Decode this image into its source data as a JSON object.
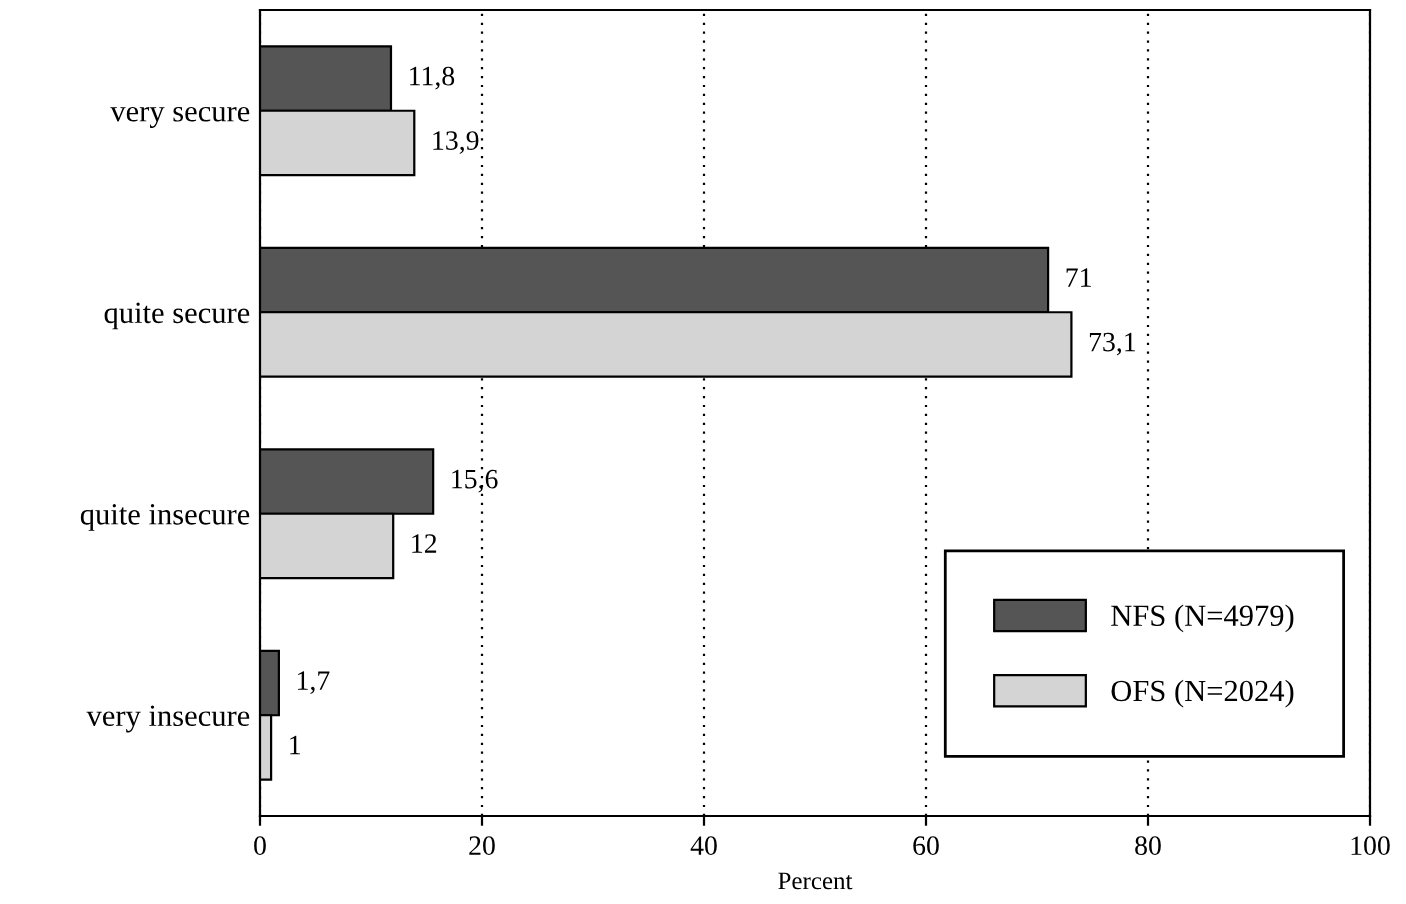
{
  "chart_data": {
    "type": "bar",
    "orientation": "horizontal",
    "xlabel": "Percent",
    "categories": [
      "very secure",
      "quite secure",
      "quite insecure",
      "very insecure"
    ],
    "series": [
      {
        "name": "NFS (N=4979)",
        "color": "#555555",
        "values": [
          11.8,
          71,
          15.6,
          1.7
        ],
        "value_labels": [
          "11,8",
          "71",
          "15,6",
          "1,7"
        ]
      },
      {
        "name": "OFS (N=2024)",
        "color": "#d4d4d4",
        "values": [
          13.9,
          73.1,
          12,
          1
        ],
        "value_labels": [
          "13,9",
          "73,1",
          "12",
          "1"
        ]
      }
    ],
    "xlim": [
      0,
      100
    ],
    "xticks": [
      0,
      20,
      40,
      60,
      80,
      100
    ],
    "grid": "x",
    "legend": "bottom right"
  }
}
